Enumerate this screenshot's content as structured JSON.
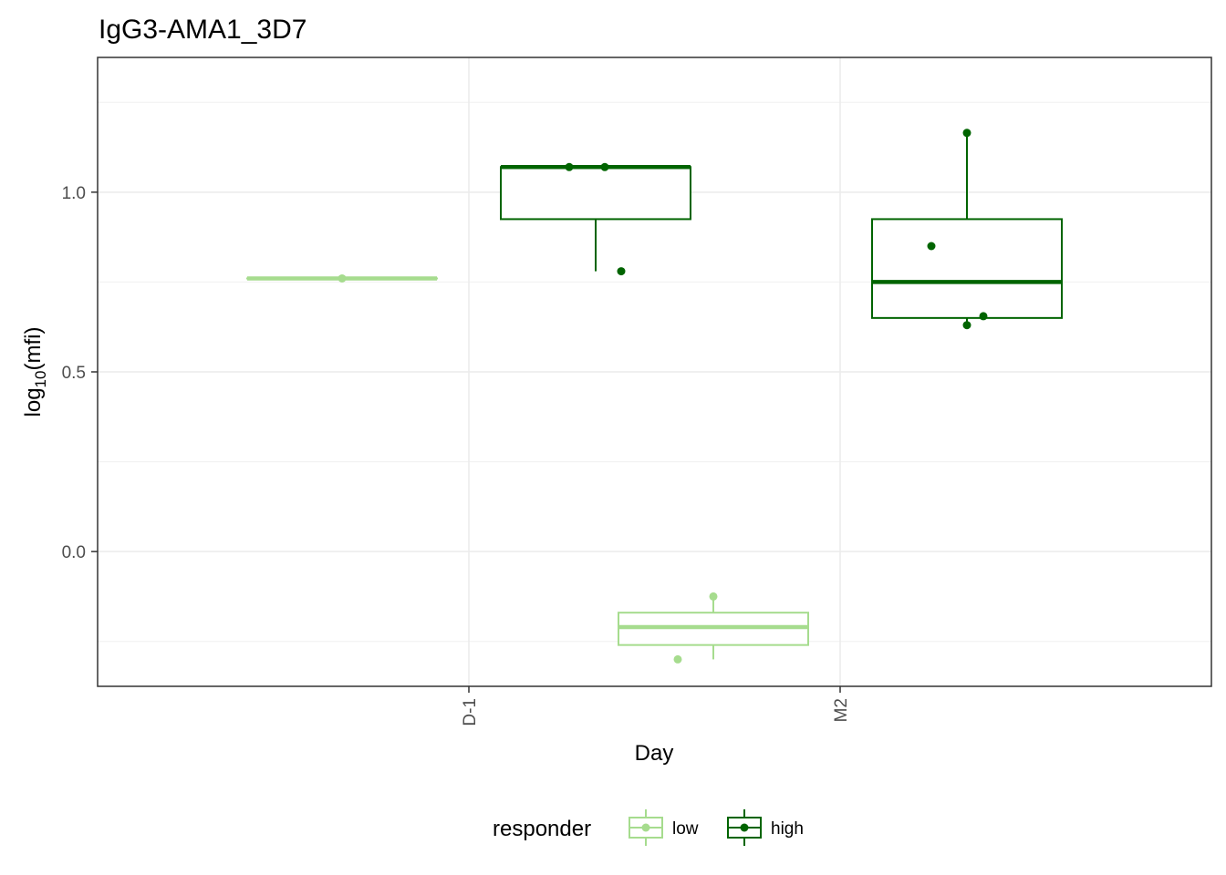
{
  "chart_data": {
    "type": "box",
    "title": "IgG3-AMA1_3D7",
    "xlabel": "Day",
    "ylabel_main": "log",
    "ylabel_sub": "10",
    "ylabel_tail": "(mfi)",
    "categories": [
      "D-1",
      "M2"
    ],
    "ylim": [
      -0.375,
      1.375
    ],
    "yticks": [
      0.0,
      0.5,
      1.0
    ],
    "ytick_labels": [
      "0.0",
      "0.5",
      "1.0"
    ],
    "grid": true,
    "legend": {
      "title": "responder",
      "position": "bottom"
    },
    "series": [
      {
        "name": "low",
        "color": "#a6dc8e",
        "boxes": [
          {
            "category": "D-1",
            "min": 0.76,
            "q1": 0.76,
            "median": 0.76,
            "q3": 0.76,
            "max": 0.76
          },
          {
            "category": "M2",
            "min": -0.3,
            "q1": -0.26,
            "median": -0.21,
            "q3": -0.17,
            "max": -0.13
          }
        ],
        "points": [
          {
            "category": "D-1",
            "y": 0.76
          },
          {
            "category": "M2",
            "y": -0.125
          },
          {
            "category": "M2",
            "y": -0.3
          }
        ]
      },
      {
        "name": "high",
        "color": "#006400",
        "boxes": [
          {
            "category": "D-1",
            "min": 0.78,
            "q1": 0.925,
            "median": 1.07,
            "q3": 1.07,
            "max": 1.07
          },
          {
            "category": "M2",
            "min": 0.63,
            "q1": 0.65,
            "median": 0.75,
            "q3": 0.925,
            "max": 1.165
          }
        ],
        "points": [
          {
            "category": "D-1",
            "y": 1.07
          },
          {
            "category": "D-1",
            "y": 1.07
          },
          {
            "category": "D-1",
            "y": 0.78
          },
          {
            "category": "M2",
            "y": 1.165
          },
          {
            "category": "M2",
            "y": 0.85
          },
          {
            "category": "M2",
            "y": 0.655
          },
          {
            "category": "M2",
            "y": 0.63
          }
        ]
      }
    ]
  }
}
